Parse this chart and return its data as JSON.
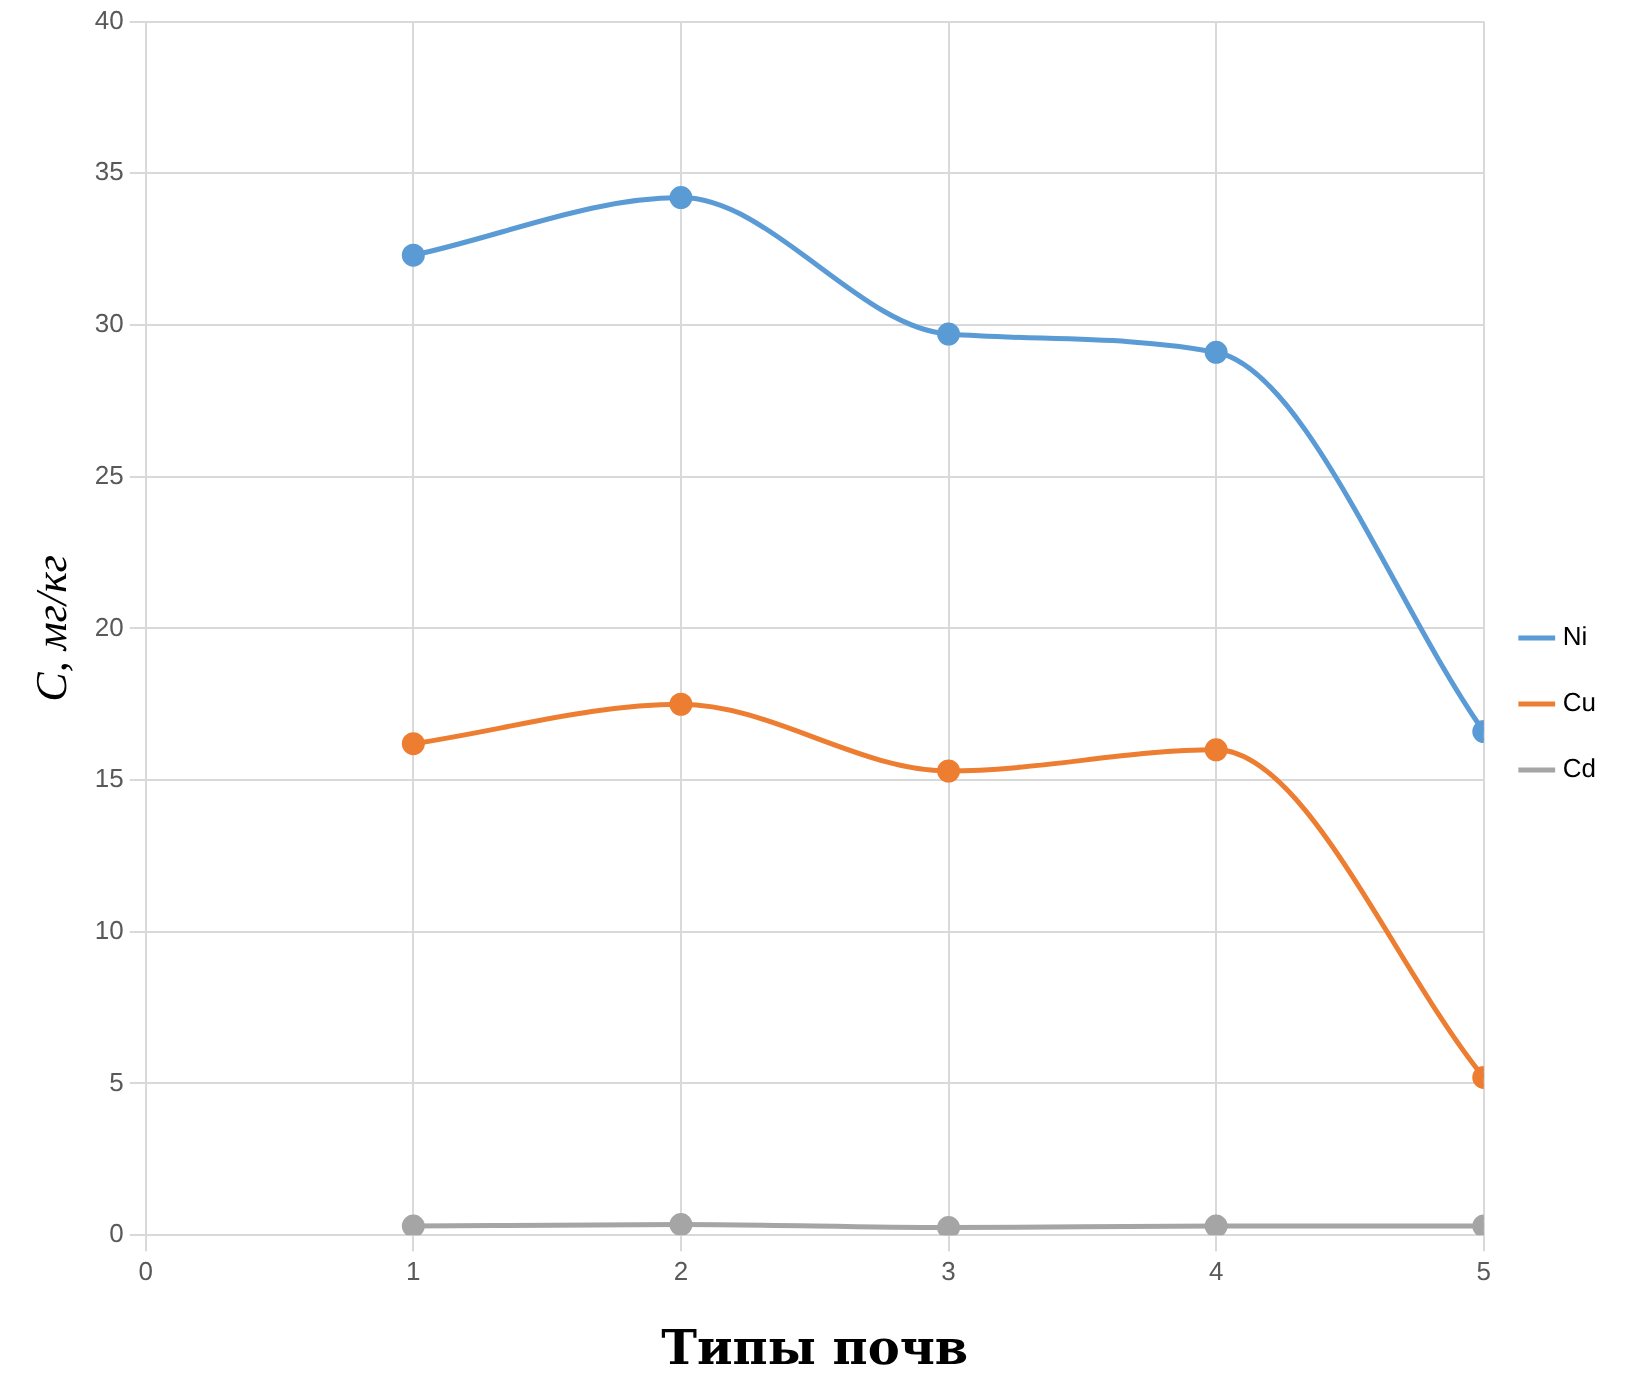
{
  "chart_data": {
    "type": "line",
    "xlabel": "Типы почв",
    "ylabel": "С, мг/кг",
    "x": [
      1,
      2,
      3,
      4,
      5
    ],
    "xlim": [
      0,
      5
    ],
    "xticks": [
      0,
      1,
      2,
      3,
      4,
      5
    ],
    "ylim": [
      0,
      40
    ],
    "yticks": [
      0,
      5,
      10,
      15,
      20,
      25,
      30,
      35,
      40
    ],
    "series": [
      {
        "name": "Ni",
        "color": "#5b9bd5",
        "values": [
          32.3,
          34.2,
          29.7,
          29.1,
          16.6
        ]
      },
      {
        "name": "Cu",
        "color": "#ed7d31",
        "values": [
          16.2,
          17.5,
          15.3,
          16.0,
          5.2
        ]
      },
      {
        "name": "Cd",
        "color": "#a5a5a5",
        "values": [
          0.3,
          0.35,
          0.25,
          0.3,
          0.3
        ]
      }
    ],
    "grid": true,
    "legend": "right",
    "marker": "circle",
    "line_style": "solid"
  }
}
